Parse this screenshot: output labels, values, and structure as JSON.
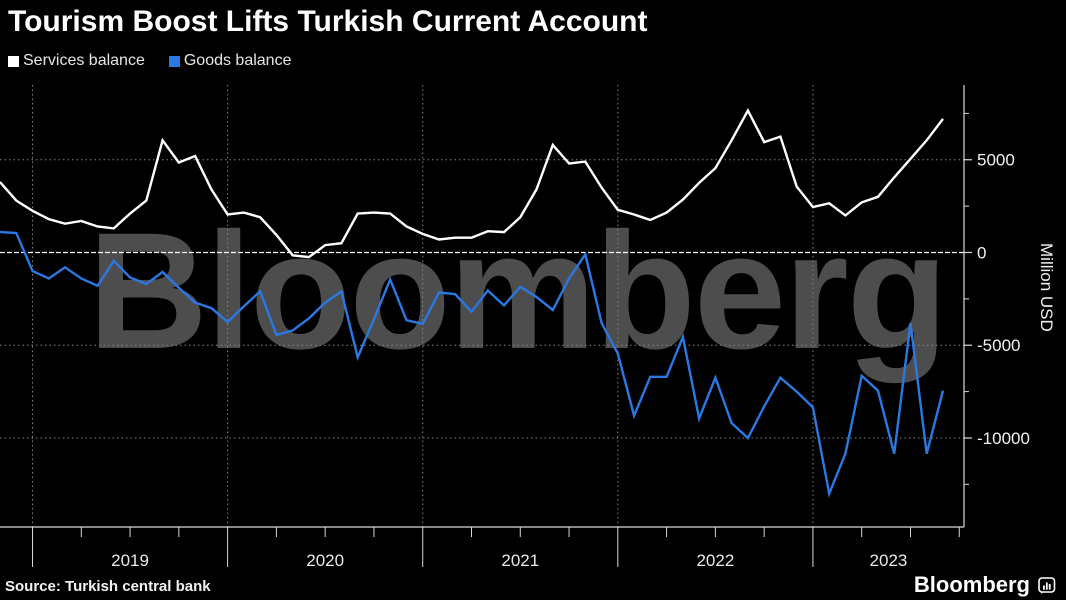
{
  "title": "Tourism Boost Lifts Turkish Current Account",
  "legend": [
    {
      "label": "Services balance",
      "color": "#ffffff"
    },
    {
      "label": "Goods balance",
      "color": "#2a78e2"
    }
  ],
  "source": "Source: Turkish central bank",
  "brand": {
    "text": "Bloomberg",
    "icon": "bar-chart-app-icon"
  },
  "watermark": "Bloomberg",
  "colors": {
    "background": "#000000",
    "services_line": "#ffffff",
    "goods_line": "#2a78e2",
    "gridline": "#858585",
    "zero_line": "#ffffff",
    "axis": "#d9d9d9",
    "tick_label": "#f2f2f2",
    "watermark": "#4d4d4d"
  },
  "y_axis": {
    "title": "Million USD",
    "ticks": [
      {
        "value": 5000,
        "label": "5000"
      },
      {
        "value": 0,
        "label": "0"
      },
      {
        "value": -5000,
        "label": "-5000"
      },
      {
        "value": -10000,
        "label": "-10000"
      }
    ],
    "minor_ticks": [
      7500,
      2500,
      -2500,
      -7500,
      -12500
    ],
    "gridline_values": [
      5000,
      -5000,
      -10000
    ],
    "zero_line": true
  },
  "x_axis": {
    "years": [
      "2019",
      "2020",
      "2021",
      "2022",
      "2023"
    ]
  },
  "chart_data": {
    "type": "line",
    "title": "Tourism Boost Lifts Turkish Current Account",
    "ylabel": "Million USD",
    "ylim": [
      -14800,
      9030
    ],
    "grid": "dashed",
    "legend_position": "top-left",
    "x": [
      "Nov 2018",
      "Dec 2018",
      "Jan 2019",
      "Feb 2019",
      "Mar 2019",
      "Apr 2019",
      "May 2019",
      "Jun 2019",
      "Jul 2019",
      "Aug 2019",
      "Sep 2019",
      "Oct 2019",
      "Nov 2019",
      "Dec 2019",
      "Jan 2020",
      "Feb 2020",
      "Mar 2020",
      "Apr 2020",
      "May 2020",
      "Jun 2020",
      "Jul 2020",
      "Aug 2020",
      "Sep 2020",
      "Oct 2020",
      "Nov 2020",
      "Dec 2020",
      "Jan 2021",
      "Feb 2021",
      "Mar 2021",
      "Apr 2021",
      "May 2021",
      "Jun 2021",
      "Jul 2021",
      "Aug 2021",
      "Sep 2021",
      "Oct 2021",
      "Nov 2021",
      "Dec 2021",
      "Jan 2022",
      "Feb 2022",
      "Mar 2022",
      "Apr 2022",
      "May 2022",
      "Jun 2022",
      "Jul 2022",
      "Aug 2022",
      "Sep 2022",
      "Oct 2022",
      "Nov 2022",
      "Dec 2022",
      "Jan 2023",
      "Feb 2023",
      "Mar 2023",
      "Apr 2023",
      "May 2023",
      "Jun 2023",
      "Jul 2023",
      "Aug 2023",
      "Sep 2023"
    ],
    "series": [
      {
        "name": "Services balance",
        "color": "#ffffff",
        "values": [
          3800,
          2800,
          2250,
          1800,
          1550,
          1700,
          1400,
          1300,
          2100,
          2800,
          6050,
          4850,
          5200,
          3400,
          2050,
          2150,
          1900,
          950,
          -150,
          -250,
          400,
          500,
          2100,
          2150,
          2100,
          1400,
          1000,
          700,
          800,
          800,
          1150,
          1100,
          1900,
          3400,
          5800,
          4800,
          4900,
          3500,
          2300,
          2050,
          1750,
          2150,
          2850,
          3750,
          4550,
          6050,
          7650,
          5950,
          6250,
          3550,
          2450,
          2650,
          2000,
          2700,
          3000,
          4050,
          5050,
          6050,
          7200
        ]
      },
      {
        "name": "Goods balance",
        "color": "#2a78e2",
        "values": [
          1100,
          1050,
          -1000,
          -1400,
          -800,
          -1400,
          -1800,
          -450,
          -1350,
          -1700,
          -1050,
          -1900,
          -2700,
          -3000,
          -3750,
          -2900,
          -2100,
          -4450,
          -4200,
          -3550,
          -2700,
          -2100,
          -5650,
          -3600,
          -1450,
          -3650,
          -3850,
          -2150,
          -2250,
          -3200,
          -2050,
          -2850,
          -1850,
          -2400,
          -3100,
          -1400,
          -100,
          -3800,
          -5450,
          -8800,
          -6700,
          -6700,
          -4550,
          -8950,
          -6750,
          -9200,
          -10000,
          -8300,
          -6750,
          -7500,
          -8350,
          -13000,
          -10850,
          -6650,
          -7450,
          -10850,
          -3800,
          -10850,
          -7450
        ]
      }
    ]
  }
}
